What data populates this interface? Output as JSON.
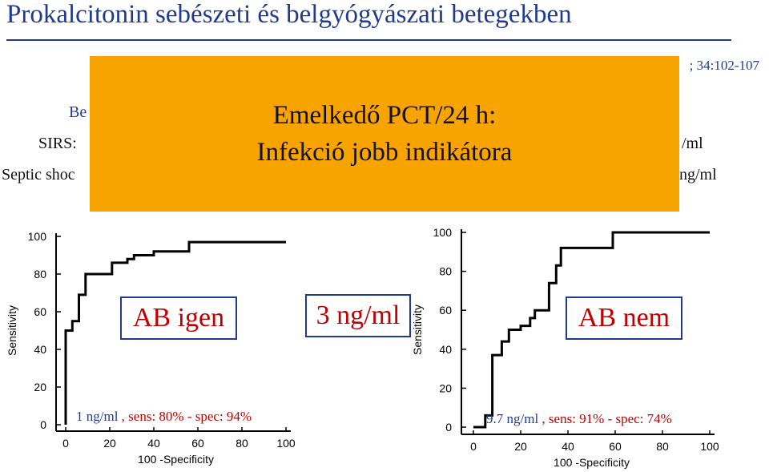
{
  "slide": {
    "title": "Prokalcitonin sebészeti és belgyógyászati betegekben",
    "reference_visible": "; 34:102-107",
    "partial_lines": {
      "be": "Be",
      "sirs": "SIRS:",
      "sirs_tail": "/ml",
      "septic": "Septic shoc",
      "septic_tail": "ng/ml"
    }
  },
  "overlay": {
    "color": "#f7a400",
    "line1": "Emelkedő PCT/24 h:",
    "line2": "Infekció jobb indikátora"
  },
  "boxes": {
    "left": "AB igen",
    "middle": "3 ng/ml",
    "right": "AB nem"
  },
  "captions": {
    "left": "1 ng/ml",
    "left_rest": " , sens: 80% - spec: 94%",
    "right": "9.7 ng/ml",
    "right_rest": " , sens: 91% - spec: 74%"
  },
  "chart_data": [
    {
      "type": "line",
      "ylabel": "Sensitivity",
      "xlabel": "100 -Specificity",
      "xlim": [
        0,
        100
      ],
      "ylim": [
        0,
        100
      ],
      "x_ticks": [
        "0",
        "20",
        "40",
        "60",
        "80",
        "100"
      ],
      "y_ticks": [
        "0",
        "20",
        "40",
        "60",
        "80",
        "100"
      ],
      "series": [
        {
          "points": [
            [
              0,
              0
            ],
            [
              0,
              50
            ],
            [
              3,
              50
            ],
            [
              3,
              55
            ],
            [
              6,
              55
            ],
            [
              6,
              69
            ],
            [
              9,
              69
            ],
            [
              9,
              80
            ],
            [
              21,
              80
            ],
            [
              21,
              86
            ],
            [
              28,
              86
            ],
            [
              28,
              88
            ],
            [
              31,
              88
            ],
            [
              31,
              90
            ],
            [
              40,
              90
            ],
            [
              40,
              92
            ],
            [
              56,
              92
            ],
            [
              56,
              97
            ],
            [
              100,
              97
            ]
          ]
        }
      ]
    },
    {
      "type": "line",
      "ylabel": "Sensitivity",
      "xlabel": "100 -Specificity",
      "xlim": [
        0,
        100
      ],
      "ylim": [
        0,
        100
      ],
      "x_ticks": [
        "0",
        "20",
        "40",
        "60",
        "80",
        "100"
      ],
      "y_ticks": [
        "0",
        "20",
        "40",
        "60",
        "80",
        "100"
      ],
      "series": [
        {
          "points": [
            [
              0,
              0
            ],
            [
              5,
              0
            ],
            [
              5,
              6
            ],
            [
              8,
              6
            ],
            [
              8,
              37
            ],
            [
              12,
              37
            ],
            [
              12,
              44
            ],
            [
              15,
              44
            ],
            [
              15,
              50
            ],
            [
              20,
              50
            ],
            [
              20,
              52
            ],
            [
              24,
              52
            ],
            [
              24,
              56
            ],
            [
              26,
              56
            ],
            [
              26,
              60
            ],
            [
              32,
              60
            ],
            [
              32,
              74
            ],
            [
              35,
              74
            ],
            [
              35,
              83
            ],
            [
              37,
              83
            ],
            [
              37,
              92
            ],
            [
              59,
              92
            ],
            [
              59,
              100
            ],
            [
              100,
              100
            ]
          ]
        }
      ]
    }
  ]
}
